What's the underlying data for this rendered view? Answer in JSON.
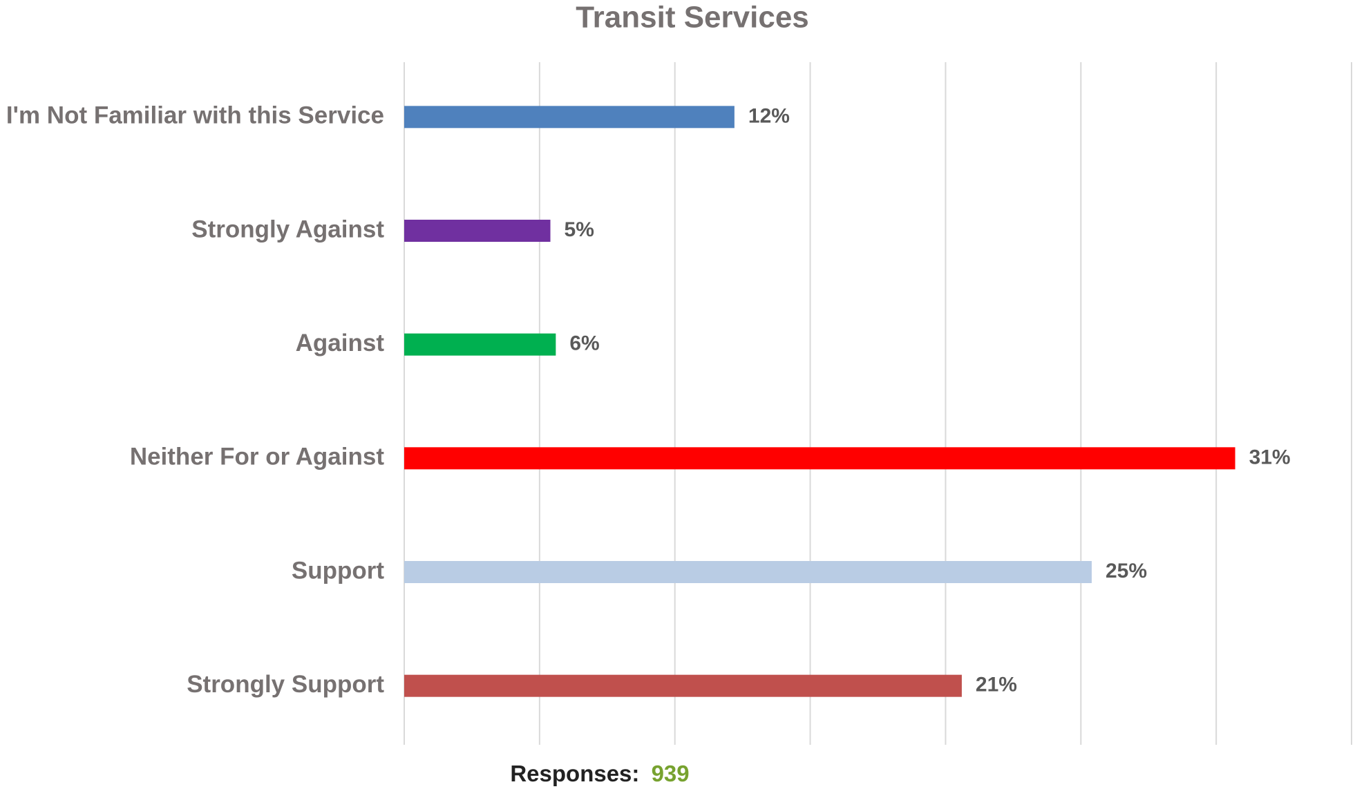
{
  "chart_data": {
    "type": "barh",
    "title": "Transit Services",
    "categories": [
      "I'm Not Familiar with this Service",
      "Strongly Against",
      "Against",
      "Neither For or Against",
      "Support",
      "Strongly Support"
    ],
    "values": [
      12.2,
      5.4,
      5.6,
      30.7,
      25.4,
      20.6
    ],
    "value_labels": [
      "12%",
      "5%",
      "6%",
      "31%",
      "25%",
      "21%"
    ],
    "colors": [
      "#4f81bd",
      "#7030a0",
      "#00b050",
      "#ff0000",
      "#b9cce4",
      "#c0504d"
    ],
    "xlim": [
      0,
      35
    ],
    "xticks": [
      0,
      5,
      10,
      15,
      20,
      25,
      30,
      35
    ],
    "grid": true,
    "footer": {
      "label": "Responses:",
      "value": 939
    }
  }
}
